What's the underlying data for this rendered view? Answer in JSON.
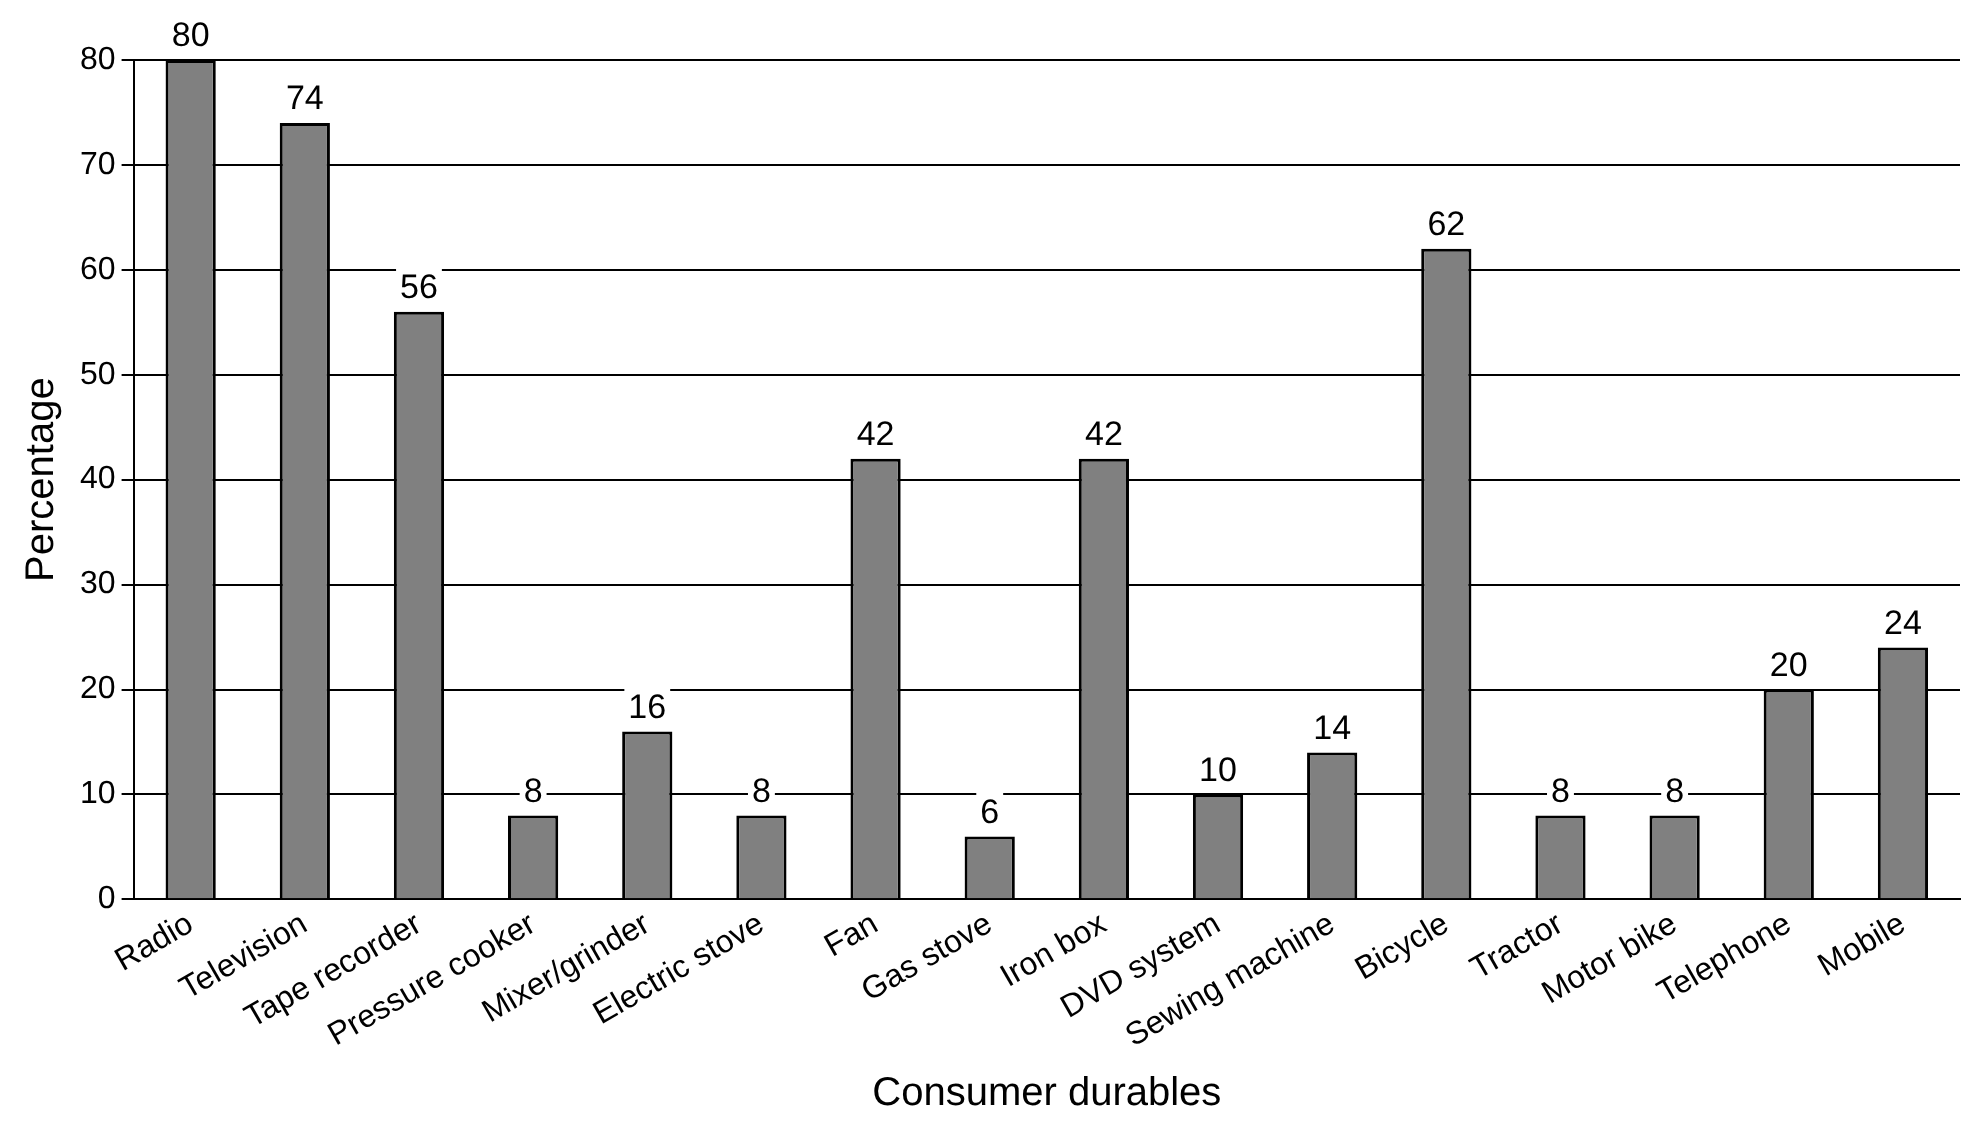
{
  "chart_data": {
    "type": "bar",
    "xlabel": "Consumer durables",
    "ylabel": "Percentage",
    "categories": [
      "Radio",
      "Television",
      "Tape recorder",
      "Pressure cooker",
      "Mixer/grinder",
      "Electric stove",
      "Fan",
      "Gas stove",
      "Iron box",
      "DVD system",
      "Sewing machine",
      "Bicycle",
      "Tractor",
      "Motor bike",
      "Telephone",
      "Mobile"
    ],
    "values": [
      80,
      74,
      56,
      8,
      16,
      8,
      42,
      6,
      42,
      10,
      14,
      62,
      8,
      8,
      20,
      24
    ],
    "color": "#808080",
    "ylim": [
      0,
      80
    ],
    "yticks": [
      0,
      10,
      20,
      30,
      40,
      50,
      60,
      70,
      80
    ],
    "grid": "y",
    "data_labels": true
  }
}
